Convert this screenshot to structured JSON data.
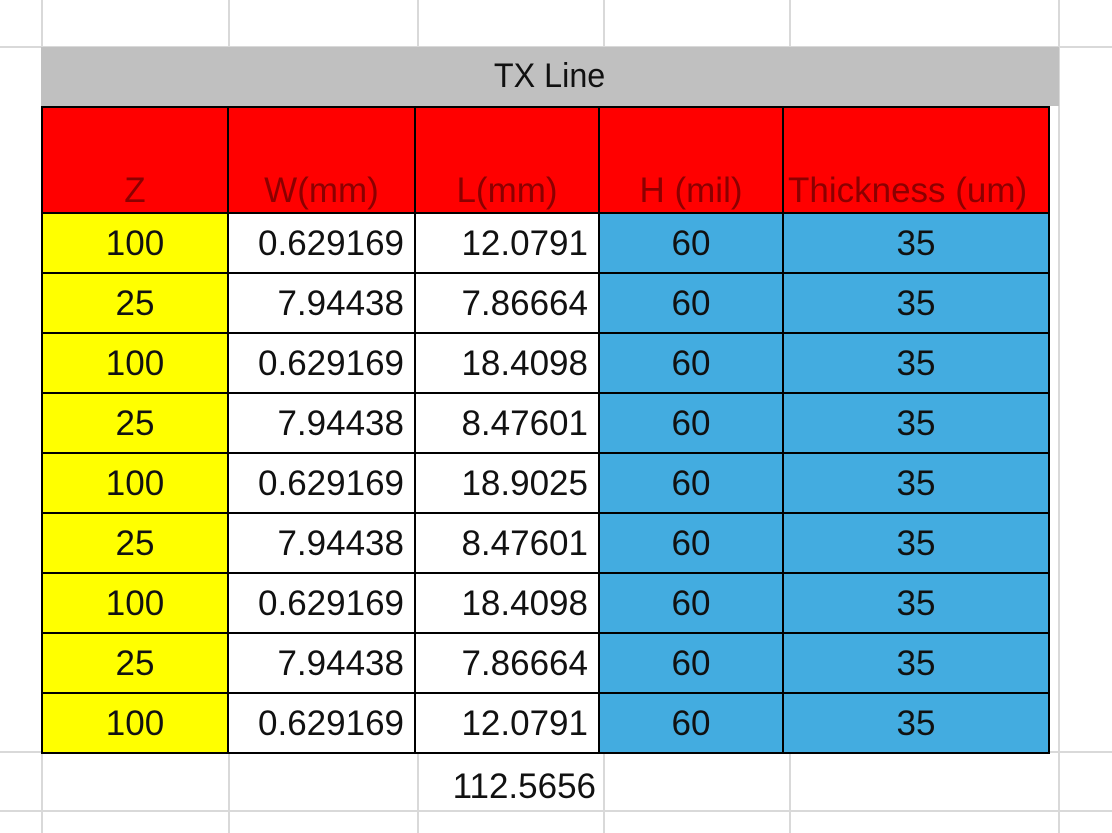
{
  "title": "TX Line",
  "headers": [
    "Z",
    "W(mm)",
    "L(mm)",
    "H (mil)",
    "Thickness (um)"
  ],
  "rows": [
    [
      "100",
      "0.629169",
      "12.0791",
      "60",
      "35"
    ],
    [
      "25",
      "7.94438",
      "7.86664",
      "60",
      "35"
    ],
    [
      "100",
      "0.629169",
      "18.4098",
      "60",
      "35"
    ],
    [
      "25",
      "7.94438",
      "8.47601",
      "60",
      "35"
    ],
    [
      "100",
      "0.629169",
      "18.9025",
      "60",
      "35"
    ],
    [
      "25",
      "7.94438",
      "8.47601",
      "60",
      "35"
    ],
    [
      "100",
      "0.629169",
      "18.4098",
      "60",
      "35"
    ],
    [
      "25",
      "7.94438",
      "7.86664",
      "60",
      "35"
    ],
    [
      "100",
      "0.629169",
      "12.0791",
      "60",
      "35"
    ]
  ],
  "total": "112.5656",
  "colors": {
    "title_bg": "#c0c0c0",
    "header_bg": "#ff0000",
    "z_column_bg": "#ffff00",
    "h_thickness_bg": "#43ace0",
    "gridline": "#d9d9d9"
  }
}
